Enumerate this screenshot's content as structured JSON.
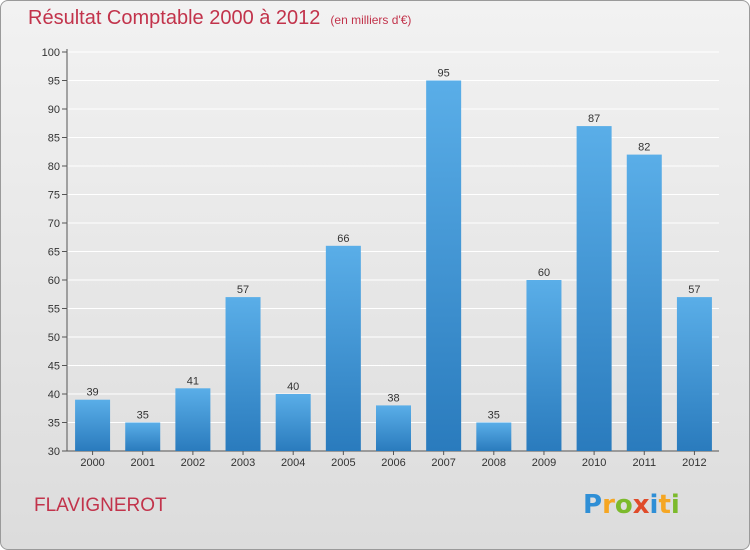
{
  "header": {
    "title": "Résultat Comptable 2000 à 2012",
    "subtitle": "(en milliers d'€)"
  },
  "footer": {
    "commune": "FLAVIGNEROT",
    "logo_letters": [
      "P",
      "r",
      "o",
      "x",
      "i",
      "t",
      "i"
    ],
    "logo_colors": [
      "#2f8fd6",
      "#f5a623",
      "#7cba2c",
      "#e04b2a",
      "#2f8fd6",
      "#f5a623",
      "#7cba2c"
    ]
  },
  "colors": {
    "bar_top": "#5aaee8",
    "bar_bottom": "#2a7bbd",
    "grid": "#ffffff",
    "axis": "#555555"
  },
  "chart_data": {
    "type": "bar",
    "title": "Résultat Comptable 2000 à 2012",
    "xlabel": "",
    "ylabel": "",
    "ylim": [
      30,
      100
    ],
    "yticks": [
      30,
      35,
      40,
      45,
      50,
      55,
      60,
      65,
      70,
      75,
      80,
      85,
      90,
      95,
      100
    ],
    "categories": [
      "2000",
      "2001",
      "2002",
      "2003",
      "2004",
      "2005",
      "2006",
      "2007",
      "2008",
      "2009",
      "2010",
      "2011",
      "2012"
    ],
    "values": [
      39,
      35,
      41,
      57,
      40,
      66,
      38,
      95,
      35,
      60,
      87,
      82,
      57
    ]
  }
}
